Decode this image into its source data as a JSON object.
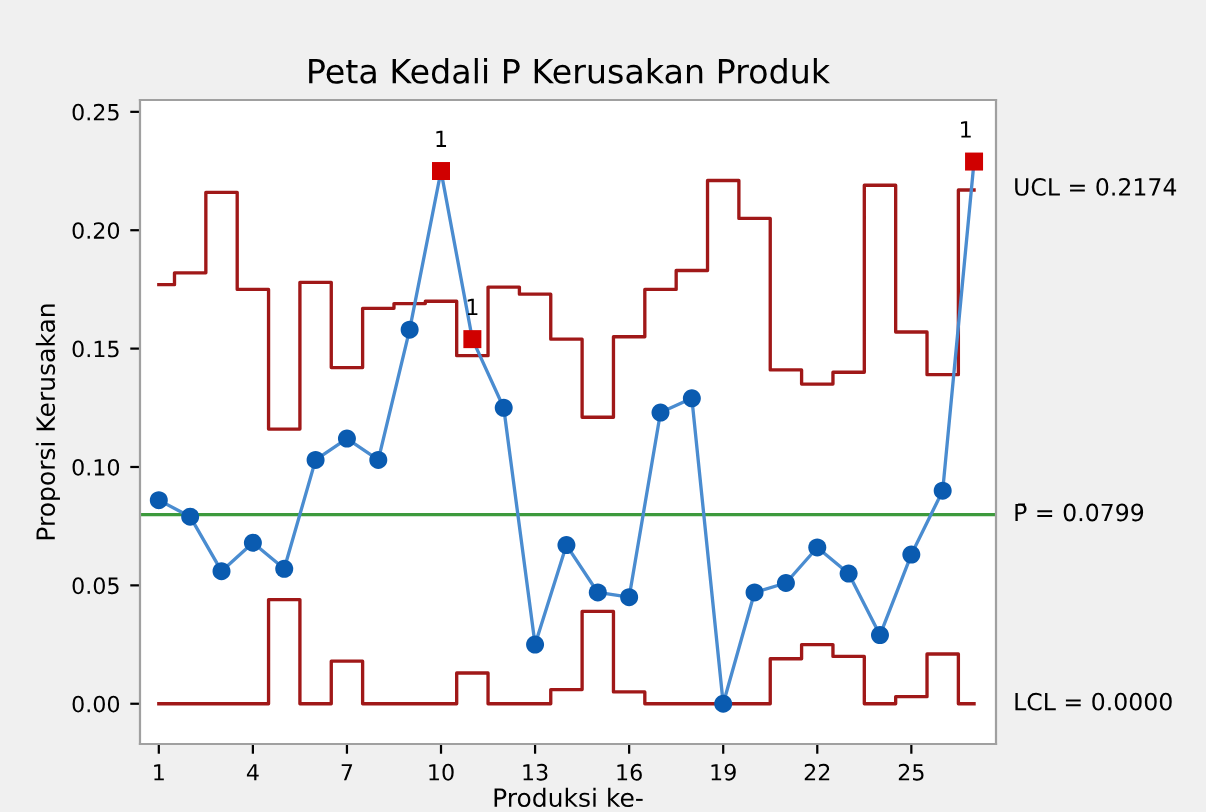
{
  "chart_data": {
    "type": "line",
    "title": "Peta Kedali P Kerusakan Produk",
    "xlabel": "Produksi ke-",
    "ylabel": "Proporsi Kerusakan",
    "x": [
      1,
      2,
      3,
      4,
      5,
      6,
      7,
      8,
      9,
      10,
      11,
      12,
      13,
      14,
      15,
      16,
      17,
      18,
      19,
      20,
      21,
      22,
      23,
      24,
      25,
      26,
      27
    ],
    "series": [
      {
        "type": "step",
        "color": "#a01818",
        "values": [
          0.177,
          0.182,
          0.216,
          0.175,
          0.116,
          0.178,
          0.142,
          0.167,
          0.169,
          0.17,
          0.147,
          0.176,
          0.173,
          0.154,
          0.121,
          0.155,
          0.175,
          0.183,
          0.221,
          0.205,
          0.141,
          0.135,
          0.14,
          0.219,
          0.157,
          0.139,
          0.217
        ]
      },
      {
        "type": "step",
        "color": "#a01818",
        "values": [
          0,
          0,
          0,
          0,
          0.044,
          0,
          0.018,
          0,
          0,
          0,
          0.013,
          0,
          0,
          0.006,
          0.039,
          0.005,
          0,
          0,
          0,
          0,
          0.019,
          0.025,
          0.02,
          0,
          0.003,
          0.021,
          0
        ]
      },
      {
        "color": "#4a8cd0",
        "marker": "none",
        "values": [
          0.086,
          0.079,
          0.056,
          0.068,
          0.057,
          0.103,
          0.112,
          0.103,
          0.158,
          0.225,
          0.154,
          0.125,
          0.025,
          0.067,
          0.047,
          0.045,
          0.123,
          0.129,
          0.0,
          0.047,
          0.051,
          0.066,
          0.055,
          0.029,
          0.063,
          0.09,
          0.229
        ]
      },
      {
        "type": "scatter",
        "color": "#0a5bb0",
        "marker": "circle",
        "values": [
          0.086,
          0.079,
          0.056,
          0.068,
          0.057,
          0.103,
          0.112,
          0.103,
          0.158,
          null,
          null,
          0.125,
          0.025,
          0.067,
          0.047,
          0.045,
          0.123,
          0.129,
          0.0,
          0.047,
          0.051,
          0.066,
          0.055,
          0.029,
          0.063,
          0.09,
          null
        ]
      },
      {
        "type": "scatter",
        "color": "#d00000",
        "marker": "square",
        "values": [
          null,
          null,
          null,
          null,
          null,
          null,
          null,
          null,
          null,
          0.225,
          0.154,
          null,
          null,
          null,
          null,
          null,
          null,
          null,
          null,
          null,
          null,
          null,
          null,
          null,
          null,
          null,
          0.229
        ]
      }
    ],
    "ref_lines": [
      {
        "axis": "y",
        "value": 0.0799,
        "label": "P̄ = 0.0799",
        "color": "#3c9a3c"
      }
    ],
    "annotations": [
      {
        "text": "1",
        "x": 10,
        "y": 0.225
      },
      {
        "text": "1",
        "x": 11,
        "y": 0.154
      },
      {
        "text": "1",
        "x": 27,
        "y": 0.229
      },
      {
        "text": "UCL = 0.2174",
        "x": 27,
        "y": 0.2174
      },
      {
        "text": "LCL = 0.0000",
        "x": 27,
        "y": 0
      }
    ],
    "xlim": [
      0.4,
      27.7
    ],
    "ylim": [
      -0.017,
      0.255
    ],
    "xticks": [
      1,
      4,
      7,
      10,
      13,
      16,
      19,
      22,
      25
    ],
    "yticks": [
      {
        "value": 0,
        "label": "0.00"
      },
      {
        "value": 0.05,
        "label": "0.05"
      },
      {
        "value": 0.1,
        "label": "0.10"
      },
      {
        "value": 0.15,
        "label": "0.15"
      },
      {
        "value": 0.2,
        "label": "0.20"
      },
      {
        "value": 0.25,
        "label": "0.25"
      }
    ],
    "grid": false,
    "legend": false
  }
}
